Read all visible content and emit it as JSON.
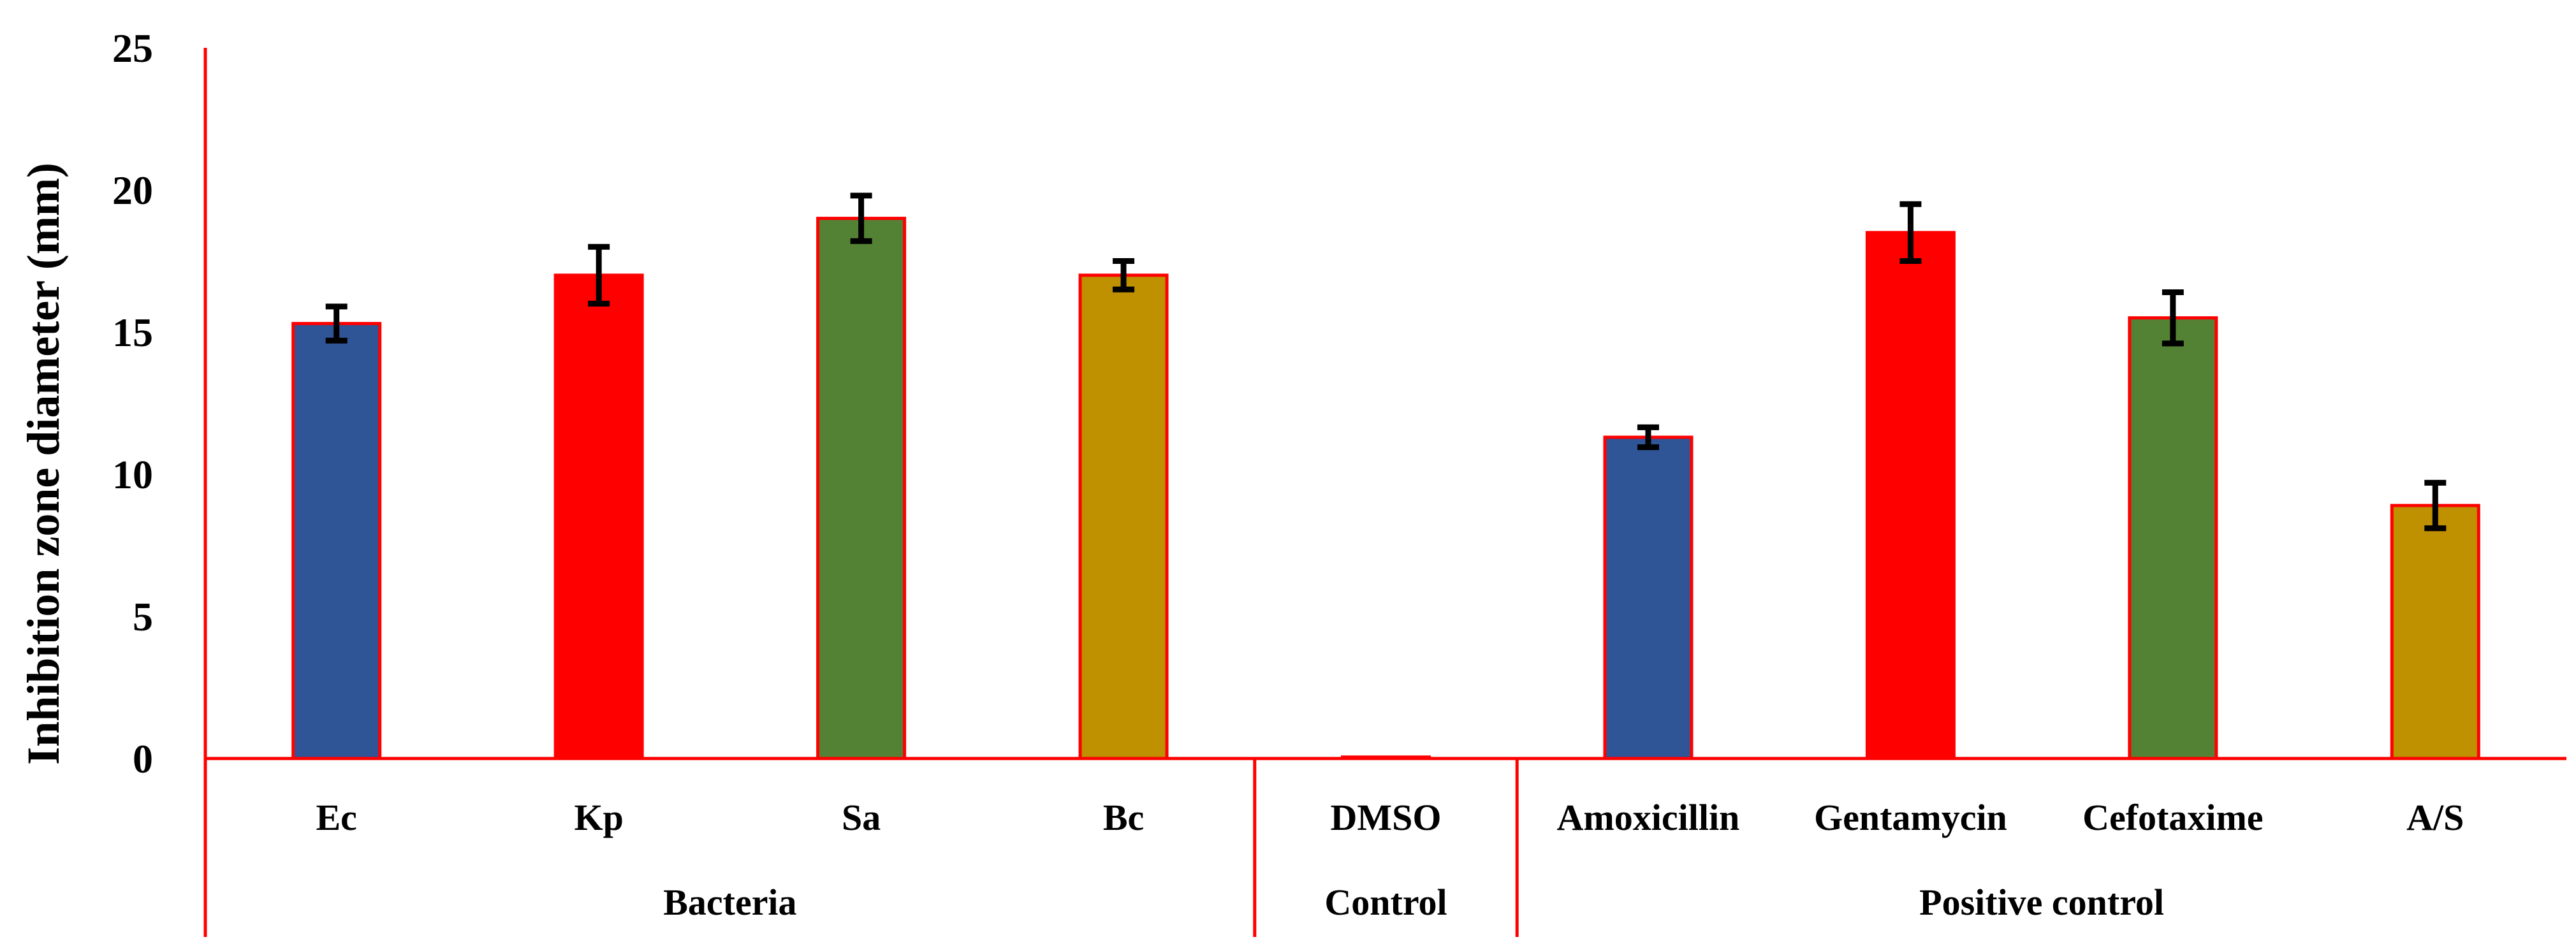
{
  "chart_data": {
    "type": "bar",
    "title": "",
    "xlabel": "",
    "ylabel": "Inhibition zone diameter (mm)",
    "ylim": [
      0,
      25
    ],
    "yticks": [
      0,
      5,
      10,
      15,
      20,
      25
    ],
    "grid": false,
    "legend": "none",
    "categories": [
      "Ec",
      "Kp",
      "Sa",
      "Bc",
      "DMSO",
      "Amoxicillin",
      "Gentamycin",
      "Cefotaxime",
      "A/S"
    ],
    "values": [
      15.3,
      17.0,
      19.0,
      17.0,
      0.05,
      11.3,
      18.5,
      15.5,
      8.9
    ],
    "errors": [
      0.6,
      1.0,
      0.8,
      0.5,
      0.0,
      0.35,
      1.0,
      0.9,
      0.8
    ],
    "colors": [
      "#2F5597",
      "#FF0000",
      "#548235",
      "#BF9000",
      "#FF0000",
      "#2F5597",
      "#FF0000",
      "#548235",
      "#BF9000"
    ],
    "bar_edge_color": "#FF0000",
    "axis_color": "#FF0000",
    "groups": [
      {
        "label": "Bacteria",
        "start": 0,
        "end": 3
      },
      {
        "label": "Control",
        "start": 4,
        "end": 4
      },
      {
        "label": "Positive control",
        "start": 5,
        "end": 8
      }
    ]
  }
}
